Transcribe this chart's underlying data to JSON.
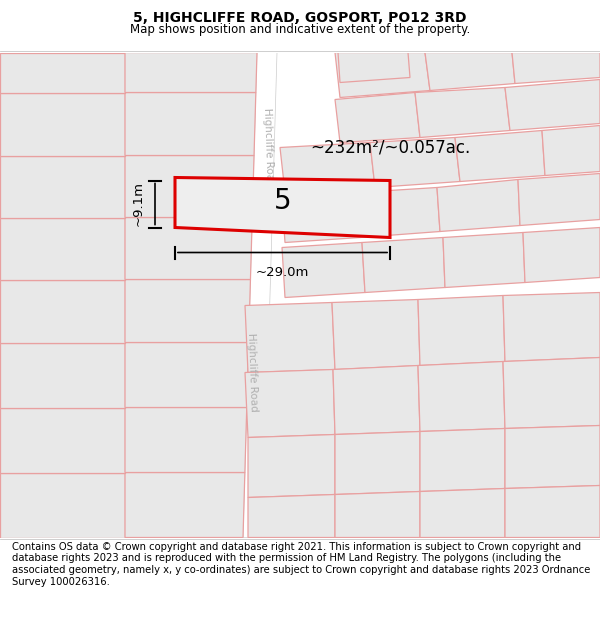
{
  "title": "5, HIGHCLIFFE ROAD, GOSPORT, PO12 3RD",
  "subtitle": "Map shows position and indicative extent of the property.",
  "footer": "Contains OS data © Crown copyright and database right 2021. This information is subject to Crown copyright and database rights 2023 and is reproduced with the permission of HM Land Registry. The polygons (including the associated geometry, namely x, y co-ordinates) are subject to Crown copyright and database rights 2023 Ordnance Survey 100026316.",
  "area_label": "~232m²/~0.057ac.",
  "width_label": "~29.0m",
  "height_label": "~9.1m",
  "property_number": "5",
  "road_label": "Highcliffe Road",
  "map_bg": "#f2f2f2",
  "plot_fill": "#e8e8e8",
  "plot_outline": "#e8a0a0",
  "highlight_fill": "#eeeeee",
  "highlight_outline": "#dd0000",
  "road_fill": "#ffffff",
  "title_fontsize": 10,
  "subtitle_fontsize": 8.5,
  "footer_fontsize": 7.2
}
